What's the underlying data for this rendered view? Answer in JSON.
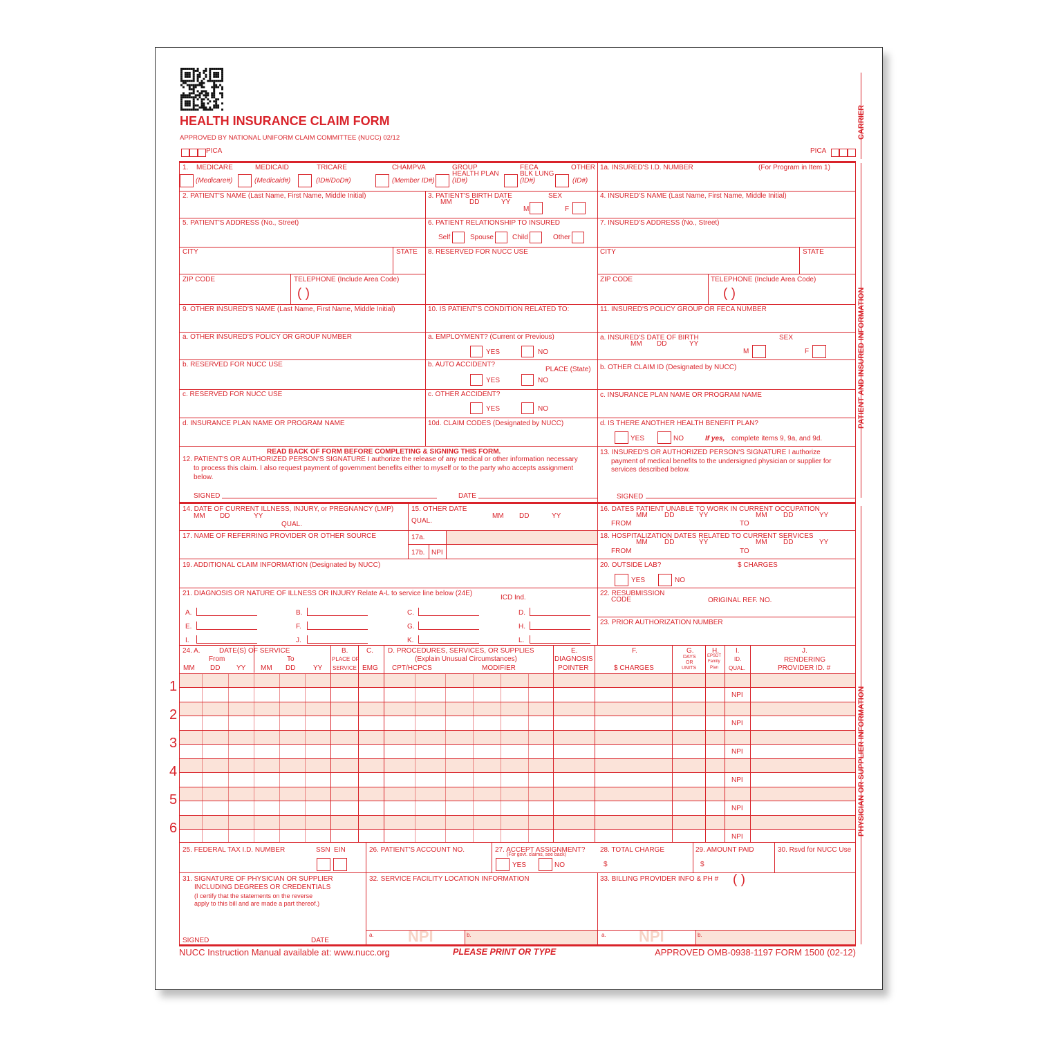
{
  "header": {
    "title": "HEALTH INSURANCE CLAIM FORM",
    "approved": "APPROVED BY NATIONAL UNIFORM CLAIM COMMITTEE (NUCC) 02/12",
    "pica_left": "PICA",
    "pica_right": "PICA",
    "qr_icon": "qr-code-icon"
  },
  "side": {
    "carrier": "CARRIER",
    "patient_insured": "PATIENT AND INSURED INFORMATION",
    "physician": "PHYSICIAN OR SUPPLIER INFORMATION"
  },
  "box1": {
    "num": "1.",
    "medicare": "MEDICARE",
    "medicaid": "MEDICAID",
    "tricare": "TRICARE",
    "champva": "CHAMPVA",
    "group1": "GROUP",
    "group2": "HEALTH PLAN",
    "feca1": "FECA",
    "feca2": "BLK LUNG",
    "other": "OTHER",
    "medicare_id": "(Medicare#)",
    "medicaid_id": "(Medicaid#)",
    "tricare_id": "(ID#/DoD#)",
    "champva_id": "(Member ID#)",
    "group_id": "(ID#)",
    "feca_id": "(ID#)",
    "other_id": "(ID#)"
  },
  "box1a": {
    "label": "1a. INSURED'S I.D. NUMBER",
    "note": "(For Program in Item 1)"
  },
  "box2": "2. PATIENT'S NAME (Last Name, First Name, Middle Initial)",
  "box3": {
    "label": "3. PATIENT'S BIRTH DATE",
    "mm": "MM",
    "dd": "DD",
    "yy": "YY",
    "sex": "SEX",
    "m": "M",
    "f": "F"
  },
  "box4": "4. INSURED'S NAME (Last Name, First Name, Middle Initial)",
  "box5": {
    "label": "5. PATIENT'S ADDRESS (No., Street)",
    "city": "CITY",
    "state": "STATE",
    "zip": "ZIP CODE",
    "tel": "TELEPHONE (Include Area Code)",
    "parens": "(      )"
  },
  "box6": {
    "label": "6. PATIENT RELATIONSHIP TO INSURED",
    "self": "Self",
    "spouse": "Spouse",
    "child": "Child",
    "other": "Other"
  },
  "box7": {
    "label": "7. INSURED'S ADDRESS (No., Street)",
    "city": "CITY",
    "state": "STATE",
    "zip": "ZIP CODE",
    "tel": "TELEPHONE (Include Area Code)",
    "parens": "(      )"
  },
  "box8": "8. RESERVED FOR NUCC USE",
  "box9": {
    "label": "9. OTHER INSURED'S NAME (Last Name, First Name, Middle Initial)",
    "a": "a. OTHER INSURED'S POLICY OR GROUP NUMBER",
    "b": "b. RESERVED FOR NUCC USE",
    "c": "c. RESERVED FOR NUCC USE",
    "d": "d. INSURANCE PLAN NAME OR PROGRAM NAME"
  },
  "box10": {
    "label": "10. IS PATIENT'S CONDITION RELATED TO:",
    "a": "a. EMPLOYMENT? (Current or Previous)",
    "b": "b. AUTO ACCIDENT?",
    "place": "PLACE (State)",
    "c": "c. OTHER ACCIDENT?",
    "d": "10d. CLAIM CODES (Designated by NUCC)",
    "yes": "YES",
    "no": "NO"
  },
  "box11": {
    "label": "11. INSURED'S POLICY GROUP OR FECA NUMBER",
    "a": "a. INSURED'S DATE OF BIRTH",
    "mm": "MM",
    "dd": "DD",
    "yy": "YY",
    "sex": "SEX",
    "m": "M",
    "f": "F",
    "b": "b. OTHER CLAIM ID (Designated by NUCC)",
    "c": "c. INSURANCE PLAN NAME OR PROGRAM NAME",
    "d": "d. IS THERE ANOTHER HEALTH BENEFIT PLAN?",
    "yes": "YES",
    "no": "NO",
    "ifyes": "If yes,",
    "ifyes_rest": "complete items 9, 9a, and 9d."
  },
  "box12": {
    "heading": "READ BACK OF FORM BEFORE COMPLETING & SIGNING THIS FORM.",
    "line1": "12. PATIENT'S OR AUTHORIZED PERSON'S SIGNATURE  I authorize the release of any medical or other information necessary",
    "line2": "to process this claim. I also request payment of government benefits either to myself or to the party who accepts assignment",
    "line3": "below.",
    "signed": "SIGNED",
    "date": "DATE"
  },
  "box13": {
    "line1": "13. INSURED'S OR AUTHORIZED PERSON'S SIGNATURE I authorize",
    "line2": "payment of medical benefits to the undersigned physician or supplier for",
    "line3": "services described below.",
    "signed": "SIGNED"
  },
  "box14": {
    "label": "14. DATE OF CURRENT ILLNESS, INJURY, or PREGNANCY (LMP)",
    "mm": "MM",
    "dd": "DD",
    "yy": "YY",
    "qual": "QUAL."
  },
  "box15": {
    "label": "15. OTHER DATE",
    "qual": "QUAL.",
    "mm": "MM",
    "dd": "DD",
    "yy": "YY"
  },
  "box16": {
    "label": "16. DATES PATIENT UNABLE TO WORK IN CURRENT OCCUPATION",
    "mm": "MM",
    "dd": "DD",
    "yy": "YY",
    "from": "FROM",
    "to": "TO"
  },
  "box17": {
    "label": "17. NAME OF REFERRING PROVIDER OR OTHER SOURCE",
    "a": "17a.",
    "b": "17b.",
    "npi": "NPI"
  },
  "box18": {
    "label": "18. HOSPITALIZATION DATES RELATED TO CURRENT SERVICES",
    "mm": "MM",
    "dd": "DD",
    "yy": "YY",
    "from": "FROM",
    "to": "TO"
  },
  "box19": "19. ADDITIONAL CLAIM INFORMATION (Designated by NUCC)",
  "box20": {
    "label": "20. OUTSIDE LAB?",
    "charges": "$ CHARGES",
    "yes": "YES",
    "no": "NO"
  },
  "box21": {
    "label": "21. DIAGNOSIS OR NATURE OF ILLNESS OR INJURY  Relate A-L to service line below (24E)",
    "icd": "ICD Ind.",
    "letters": [
      "A.",
      "B.",
      "C.",
      "D.",
      "E.",
      "F.",
      "G.",
      "H.",
      "I.",
      "J.",
      "K.",
      "L."
    ]
  },
  "box22": {
    "label": "22. RESUBMISSION",
    "code": "CODE",
    "orig": "ORIGINAL REF. NO."
  },
  "box23": "23. PRIOR AUTHORIZATION NUMBER",
  "box24": {
    "a": "24. A.",
    "dates": "DATE(S) OF SERVICE",
    "from": "From",
    "to": "To",
    "mm": "MM",
    "dd": "DD",
    "yy": "YY",
    "b": "B.",
    "pos1": "PLACE OF",
    "pos2": "SERVICE",
    "c": "C.",
    "emg": "EMG",
    "d": "D. PROCEDURES, SERVICES, OR SUPPLIES",
    "d2": "(Explain Unusual Circumstances)",
    "cpt": "CPT/HCPCS",
    "modifier": "MODIFIER",
    "e": "E.",
    "e2": "DIAGNOSIS",
    "e3": "POINTER",
    "f": "F.",
    "charges": "$ CHARGES",
    "g": "G.",
    "g2": "DAYS",
    "g3": "OR",
    "g4": "UNITS",
    "h": "H.",
    "h2": "EPSDT",
    "h3": "Family",
    "h4": "Plan",
    "i": "I.",
    "i2": "ID.",
    "i3": "QUAL.",
    "j": "J.",
    "j2": "RENDERING",
    "j3": "PROVIDER ID. #",
    "npi": "NPI",
    "lines": [
      "1",
      "2",
      "3",
      "4",
      "5",
      "6"
    ]
  },
  "box25": {
    "label": "25. FEDERAL TAX I.D. NUMBER",
    "ssn": "SSN",
    "ein": "EIN"
  },
  "box26": "26. PATIENT'S ACCOUNT NO.",
  "box27": {
    "label": "27. ACCEPT ASSIGNMENT?",
    "note": "(For govt. claims, see back)",
    "yes": "YES",
    "no": "NO"
  },
  "box28": {
    "label": "28. TOTAL CHARGE",
    "dollar": "$"
  },
  "box29": {
    "label": "29. AMOUNT PAID",
    "dollar": "$"
  },
  "box30": "30. Rsvd for NUCC Use",
  "box31": {
    "line1": "31. SIGNATURE OF PHYSICIAN OR SUPPLIER",
    "line2": "INCLUDING DEGREES OR CREDENTIALS",
    "line3": "(I certify that the statements on the reverse",
    "line4": "apply to this bill and are made a part thereof.)",
    "signed": "SIGNED",
    "date": "DATE"
  },
  "box32": {
    "label": "32. SERVICE FACILITY LOCATION INFORMATION",
    "a": "a.",
    "b": "b.",
    "npi": "NPI"
  },
  "box33": {
    "label": "33. BILLING PROVIDER INFO & PH #",
    "parens": "(      )",
    "a": "a.",
    "b": "b.",
    "npi": "NPI"
  },
  "footer": {
    "left": "NUCC Instruction Manual available at: www.nucc.org",
    "center": "PLEASE PRINT OR TYPE",
    "right": "APPROVED OMB-0938-1197 FORM 1500 (02-12)"
  },
  "colors": {
    "form_red": "#d9232a",
    "shade": "#fbe3d9"
  }
}
